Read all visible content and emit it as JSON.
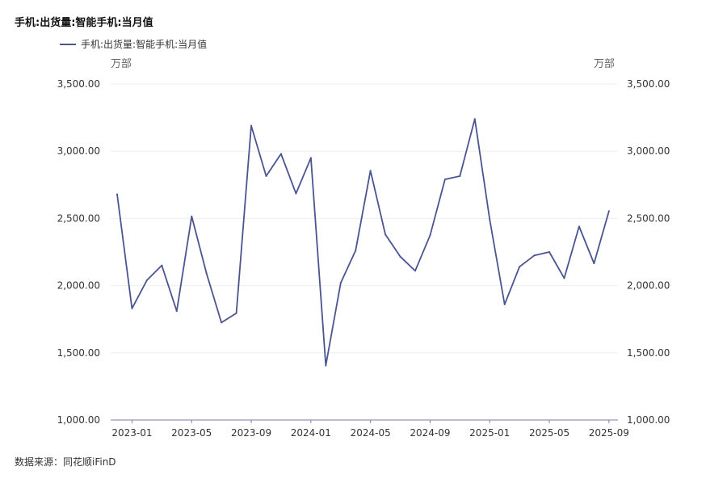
{
  "title": "手机:出货量:智能手机:当月值",
  "legend": [
    "手机:出货量:智能手机:当月值"
  ],
  "unit_left": "万部",
  "unit_right": "万部",
  "source": "数据来源：同花顺iFinD",
  "colors": {
    "series": "#4a5490",
    "axis": "#7a7fa8",
    "grid": "#eeeeee"
  },
  "chart_data": {
    "type": "line",
    "ylim": [
      1000,
      3500
    ],
    "yticks": [
      1000,
      1500,
      2000,
      2500,
      3000,
      3500
    ],
    "ytick_labels": [
      "1,000.00",
      "1,500.00",
      "2,000.00",
      "2,500.00",
      "3,000.00",
      "3,500.00"
    ],
    "xtick_labels": [
      "2023-01",
      "2023-05",
      "2023-09",
      "2024-01",
      "2024-05",
      "2024-09",
      "2025-01",
      "2025-05",
      "2025-09"
    ],
    "x": [
      "2022-12",
      "2023-01",
      "2023-02",
      "2023-03",
      "2023-04",
      "2023-05",
      "2023-06",
      "2023-07",
      "2023-08",
      "2023-09",
      "2023-10",
      "2023-11",
      "2023-12",
      "2024-01",
      "2024-02",
      "2024-03",
      "2024-04",
      "2024-05",
      "2024-06",
      "2024-07",
      "2024-08",
      "2024-09",
      "2024-10",
      "2024-11",
      "2024-12",
      "2025-01",
      "2025-02",
      "2025-03",
      "2025-04",
      "2025-05",
      "2025-06",
      "2025-07",
      "2025-08",
      "2025-09"
    ],
    "series": [
      {
        "name": "手机:出货量:智能手机:当月值",
        "values": [
          2680,
          1830,
          2040,
          2150,
          1810,
          2515,
          2090,
          1725,
          1795,
          3190,
          2815,
          2980,
          2685,
          2950,
          1405,
          2020,
          2260,
          2855,
          2380,
          2215,
          2110,
          2375,
          2790,
          2815,
          3240,
          2490,
          1860,
          2140,
          2225,
          2250,
          2055,
          2440,
          2165,
          2555
        ]
      }
    ],
    "grid": true,
    "legend_position": "top-left"
  }
}
